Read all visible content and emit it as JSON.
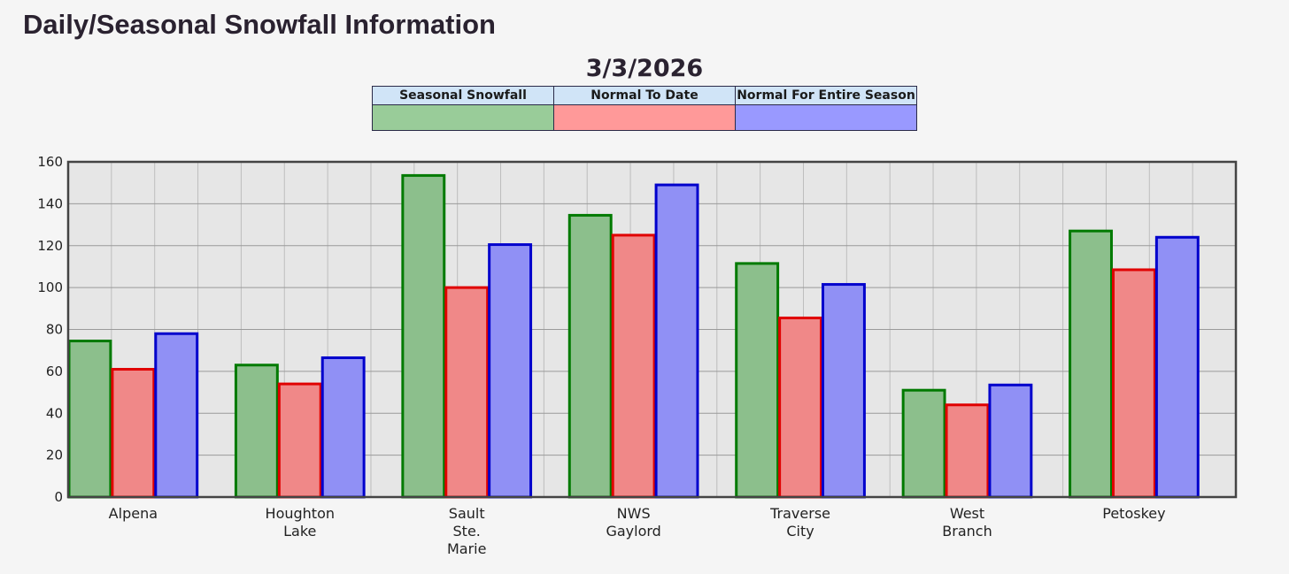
{
  "header": {
    "title": "Daily/Seasonal Snowfall Information"
  },
  "date": "3/3/2026",
  "legend": [
    {
      "label": "Seasonal Snowfall",
      "color": "#99cc99"
    },
    {
      "label": "Normal To Date",
      "color": "#ff9999"
    },
    {
      "label": "Normal For Entire Season",
      "color": "#9999ff"
    }
  ],
  "chart_data": {
    "type": "bar",
    "categories": [
      [
        "Alpena"
      ],
      [
        "Houghton",
        "Lake"
      ],
      [
        "Sault",
        "Ste.",
        "Marie"
      ],
      [
        "NWS",
        "Gaylord"
      ],
      [
        "Traverse",
        "City"
      ],
      [
        "West",
        "Branch"
      ],
      [
        "Petoskey"
      ]
    ],
    "series": [
      {
        "name": "Seasonal Snowfall",
        "fill": "#8cbf8c",
        "stroke": "#007a00",
        "values": [
          74.5,
          63,
          153.5,
          134.5,
          111.5,
          51,
          127
        ]
      },
      {
        "name": "Normal To Date",
        "fill": "#f08888",
        "stroke": "#e00000",
        "values": [
          61,
          54,
          100,
          125,
          85.5,
          44,
          108.5
        ]
      },
      {
        "name": "Normal For Entire Season",
        "fill": "#9090f5",
        "stroke": "#0000cc",
        "values": [
          78,
          66.5,
          120.5,
          149,
          101.5,
          53.5,
          124
        ]
      }
    ],
    "ylim": [
      0,
      160
    ],
    "yticks": [
      0,
      20,
      40,
      60,
      80,
      100,
      120,
      140,
      160
    ],
    "grid": true
  }
}
